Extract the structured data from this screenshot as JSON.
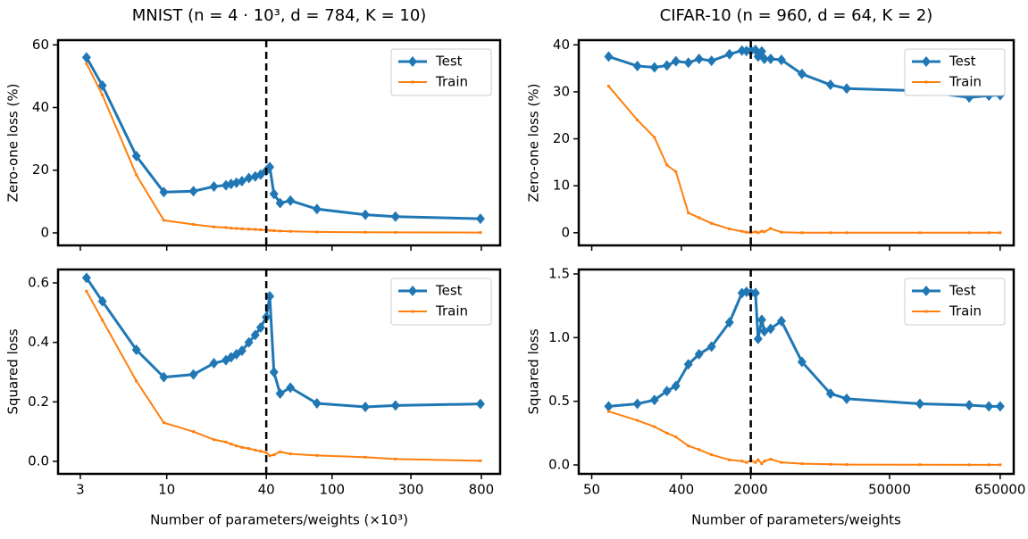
{
  "chart_data": [
    {
      "type": "line",
      "title": "MNIST (n = 4 · 10³, d = 784, K = 10)",
      "ylabel": "Zero-one loss (%)",
      "x": [
        3.27,
        4.08,
        6.55,
        9.6,
        14.5,
        19.3,
        22.8,
        24.5,
        26.4,
        28.5,
        31.4,
        34.3,
        37,
        40,
        42,
        44.5,
        48.5,
        56,
        81,
        159,
        242,
        790
      ],
      "series": [
        {
          "name": "Test",
          "color": "#1f77b4",
          "values": [
            56,
            47,
            24.5,
            13,
            13.3,
            14.8,
            15.2,
            15.6,
            16,
            16.5,
            17.5,
            18,
            18.6,
            19.8,
            21,
            12.4,
            9.5,
            10.3,
            7.6,
            5.8,
            5.2,
            4.5
          ]
        },
        {
          "name": "Train",
          "color": "#ff7f0e",
          "values": [
            54,
            44,
            18.5,
            4,
            2.7,
            1.9,
            1.7,
            1.5,
            1.4,
            1.3,
            1.2,
            1.1,
            1.0,
            0.9,
            0.8,
            0.7,
            0.6,
            0.5,
            0.3,
            0.2,
            0.15,
            0.1
          ]
        }
      ],
      "xlim": [
        2.2,
        1040
      ],
      "log_x": true,
      "ylim": [
        -4,
        61.5
      ],
      "yticks": [
        0,
        20,
        40,
        60
      ],
      "vline": 40,
      "legend": "upper right"
    },
    {
      "type": "line",
      "title": "CIFAR-10 (n = 960, d = 64, K = 2)",
      "ylabel": "Zero-one loss (%)",
      "x": [
        74,
        144,
        214,
        286,
        352,
        470,
        603,
        805,
        1220,
        1630,
        1810,
        2010,
        2230,
        2370,
        2580,
        2740,
        3170,
        4070,
        6550,
        12700,
        18500,
        101000,
        317000,
        500000,
        650000
      ],
      "series": [
        {
          "name": "Test",
          "color": "#1f77b4",
          "values": [
            37.5,
            35.5,
            35.2,
            35.6,
            36.5,
            36.2,
            37,
            36.6,
            38,
            38.8,
            38.7,
            38.8,
            38.9,
            37.5,
            38.6,
            37,
            37,
            36.8,
            33.8,
            31.5,
            30.7,
            30.2,
            28.8,
            29.2,
            29.3
          ]
        },
        {
          "name": "Train",
          "color": "#ff7f0e",
          "values": [
            31.2,
            24,
            20.3,
            14.4,
            13,
            4.2,
            3.2,
            2,
            0.8,
            0.3,
            0.1,
            0,
            0.2,
            0,
            0.3,
            0.2,
            0.9,
            0.1,
            0,
            0,
            0,
            0,
            0,
            0,
            0
          ]
        }
      ],
      "xlim": [
        37,
        890000
      ],
      "log_x": true,
      "ylim": [
        -2.7,
        41
      ],
      "yticks": [
        0,
        10,
        20,
        30,
        40
      ],
      "vline": 2000,
      "legend": "upper right"
    },
    {
      "type": "line",
      "ylabel": "Squared loss",
      "xlabel": "Number of parameters/weights (×10³)",
      "x": [
        3.27,
        4.08,
        6.55,
        9.6,
        14.5,
        19.3,
        22.8,
        24.5,
        26.4,
        28.5,
        31.4,
        34.3,
        37,
        40,
        42,
        44.5,
        48.5,
        56,
        81,
        159,
        242,
        790
      ],
      "series": [
        {
          "name": "Test",
          "color": "#1f77b4",
          "values": [
            0.617,
            0.538,
            0.375,
            0.283,
            0.292,
            0.33,
            0.34,
            0.35,
            0.36,
            0.372,
            0.4,
            0.425,
            0.45,
            0.485,
            0.555,
            0.3,
            0.228,
            0.248,
            0.195,
            0.183,
            0.188,
            0.193
          ]
        },
        {
          "name": "Train",
          "color": "#ff7f0e",
          "values": [
            0.572,
            0.475,
            0.27,
            0.13,
            0.1,
            0.073,
            0.065,
            0.058,
            0.052,
            0.047,
            0.043,
            0.038,
            0.034,
            0.03,
            0.019,
            0.022,
            0.032,
            0.025,
            0.02,
            0.014,
            0.008,
            0.002
          ]
        }
      ],
      "xlim": [
        2.2,
        1040
      ],
      "log_x": true,
      "xticks": [
        3,
        10,
        40,
        100,
        300,
        800
      ],
      "ylim": [
        -0.042,
        0.645
      ],
      "yticks": [
        {
          "value": 0,
          "label": "0.0"
        },
        0.2,
        0.4,
        0.6
      ],
      "vline": 40,
      "legend": "upper right"
    },
    {
      "type": "line",
      "ylabel": "Squared loss",
      "xlabel": "Number of parameters/weights",
      "x": [
        74,
        144,
        214,
        286,
        352,
        470,
        603,
        805,
        1220,
        1630,
        1810,
        2010,
        2230,
        2370,
        2580,
        2740,
        3170,
        4070,
        6550,
        12700,
        18500,
        101000,
        317000,
        500000,
        650000
      ],
      "series": [
        {
          "name": "Test",
          "color": "#1f77b4",
          "values": [
            0.46,
            0.48,
            0.51,
            0.58,
            0.62,
            0.79,
            0.87,
            0.93,
            1.12,
            1.35,
            1.36,
            1.35,
            1.35,
            0.99,
            1.14,
            1.05,
            1.07,
            1.13,
            0.81,
            0.56,
            0.52,
            0.48,
            0.47,
            0.46,
            0.46
          ]
        },
        {
          "name": "Train",
          "color": "#ff7f0e",
          "values": [
            0.42,
            0.35,
            0.3,
            0.25,
            0.22,
            0.15,
            0.12,
            0.08,
            0.04,
            0.03,
            0.02,
            0.035,
            0.02,
            0.04,
            0.01,
            0.03,
            0.045,
            0.02,
            0.01,
            0.005,
            0.003,
            0.002,
            0.001,
            0.001,
            0.001
          ]
        }
      ],
      "xlim": [
        37,
        890000
      ],
      "log_x": true,
      "xticks": [
        50,
        400,
        2000,
        50000,
        650000
      ],
      "ylim": [
        -0.07,
        1.535
      ],
      "yticks": [
        {
          "value": 0,
          "label": "0.0"
        },
        0.5,
        {
          "value": 1,
          "label": "1.0"
        },
        1.5
      ],
      "vline": 2000,
      "legend": "upper right"
    }
  ]
}
